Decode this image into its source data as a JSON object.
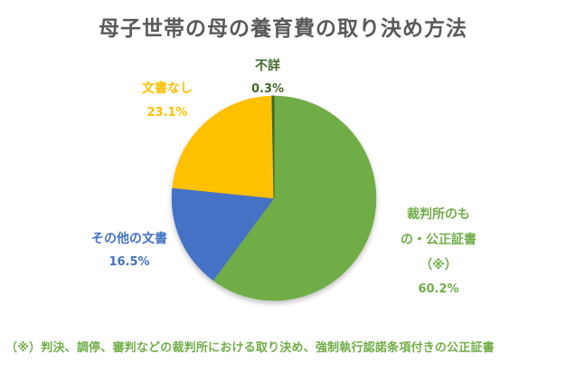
{
  "title": "母子世帯の母の養育費の取り決め方法",
  "colors": {
    "court": "#70AD47",
    "other": "#4472C4",
    "nodoc": "#FFC000",
    "unknown": "#43682B",
    "title": "#595959",
    "footnote": "#70AD47"
  },
  "labels": {
    "court": {
      "name_line1": "裁判所のも",
      "name_line2": "の・公正証書",
      "name_line3": "（※）",
      "pct": "60.2%"
    },
    "other": {
      "name": "その他の文書",
      "pct": "16.5%"
    },
    "nodoc": {
      "name": "文書なし",
      "pct": "23.1%"
    },
    "unknown": {
      "name": "不詳",
      "pct": "0.3%"
    }
  },
  "footnote": "（※）判決、調停、審判などの裁判所における取り決め、強制執行認諾条項付きの公正証書",
  "chart_data": {
    "type": "pie",
    "title": "母子世帯の母の養育費の取り決め方法",
    "categories": [
      "裁判所のもの・公正証書（※）",
      "その他の文書",
      "文書なし",
      "不詳"
    ],
    "values": [
      60.2,
      16.5,
      23.1,
      0.3
    ],
    "unit": "%",
    "colors": [
      "#70AD47",
      "#4472C4",
      "#FFC000",
      "#43682B"
    ],
    "start_angle_deg": 0,
    "direction": "clockwise",
    "data_labels": [
      "60.2%",
      "16.5%",
      "23.1%",
      "0.3%"
    ],
    "legend": "none (category labels placed next to slices)",
    "annotation": "（※）判決、調停、審判などの裁判所における取り決め、強制執行認諾条項付きの公正証書"
  }
}
